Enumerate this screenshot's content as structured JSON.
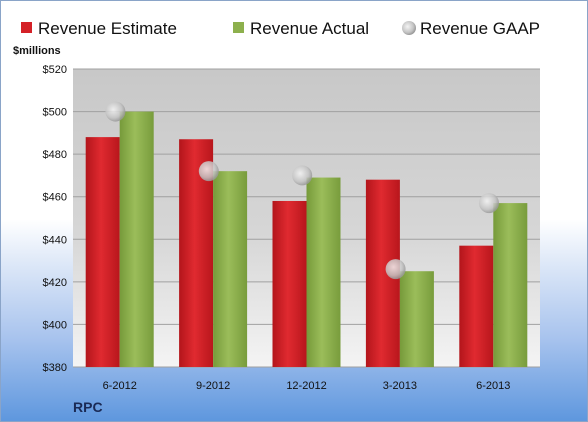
{
  "chart_data": {
    "type": "bar",
    "unit_label": "$millions",
    "company": "RPC",
    "categories": [
      "6-2012",
      "9-2012",
      "12-2012",
      "3-2013",
      "6-2013"
    ],
    "series": [
      {
        "name": "Revenue Estimate",
        "kind": "bar",
        "color": "#d42127",
        "values": [
          488,
          487,
          458,
          468,
          437
        ]
      },
      {
        "name": "Revenue Actual",
        "kind": "bar",
        "color": "#8db04d",
        "values": [
          500,
          472,
          469,
          425,
          457
        ]
      },
      {
        "name": "Revenue GAAP",
        "kind": "marker",
        "color": "#c8c8c8",
        "values": [
          500,
          472,
          470,
          426,
          457
        ]
      }
    ],
    "y_ticks": [
      "$380",
      "$400",
      "$420",
      "$440",
      "$460",
      "$480",
      "$500",
      "$520"
    ],
    "ylim": [
      380,
      520
    ],
    "grid": true,
    "legend_position": "top"
  }
}
